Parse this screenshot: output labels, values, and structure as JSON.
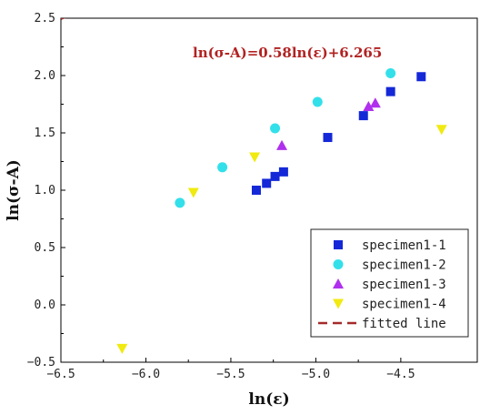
{
  "chart_data": {
    "type": "scatter",
    "xlabel": "ln(ε)",
    "ylabel": "ln(σ-A)",
    "xlim": [
      -6.5,
      -4.05
    ],
    "ylim": [
      -0.5,
      2.5
    ],
    "xticks": [
      -6.5,
      -6.0,
      -5.5,
      -5.0,
      -4.5
    ],
    "xtick_labels": [
      "−6.5",
      "−6.0",
      "−5.5",
      "−5.0",
      "−4.5"
    ],
    "yticks": [
      -0.5,
      0.0,
      0.5,
      1.0,
      1.5,
      2.0,
      2.5
    ],
    "ytick_labels": [
      "−0.5",
      "0.0",
      "0.5",
      "1.0",
      "1.5",
      "2.0",
      "2.5"
    ],
    "annotation": "ln(σ-A)=0.58ln(ε)+6.265",
    "legend_position": "bottom-right",
    "series": [
      {
        "name": "specimen1-1",
        "marker": "square",
        "color": "#1428d8",
        "points": [
          [
            -5.35,
            1.0
          ],
          [
            -5.29,
            1.06
          ],
          [
            -5.24,
            1.12
          ],
          [
            -5.19,
            1.16
          ],
          [
            -4.93,
            1.46
          ],
          [
            -4.72,
            1.65
          ],
          [
            -4.56,
            1.86
          ],
          [
            -4.38,
            1.99
          ]
        ]
      },
      {
        "name": "specimen1-2",
        "marker": "circle",
        "color": "#33e0ea",
        "points": [
          [
            -5.8,
            0.89
          ],
          [
            -5.55,
            1.2
          ],
          [
            -5.24,
            1.54
          ],
          [
            -4.99,
            1.77
          ],
          [
            -4.56,
            2.02
          ]
        ]
      },
      {
        "name": "specimen1-3",
        "marker": "triangle-up",
        "color": "#b030ee",
        "points": [
          [
            -5.2,
            1.39
          ],
          [
            -4.69,
            1.73
          ],
          [
            -4.65,
            1.76
          ]
        ]
      },
      {
        "name": "specimen1-4",
        "marker": "triangle-down",
        "color": "#f0ea10",
        "points": [
          [
            -6.14,
            -0.38
          ],
          [
            -5.72,
            0.98
          ],
          [
            -5.36,
            1.29
          ],
          [
            -4.26,
            1.53
          ]
        ]
      }
    ],
    "fitted_line": {
      "name": "fitted line",
      "slope": 0.58,
      "intercept": 6.265,
      "color": "#a52a2a"
    }
  }
}
